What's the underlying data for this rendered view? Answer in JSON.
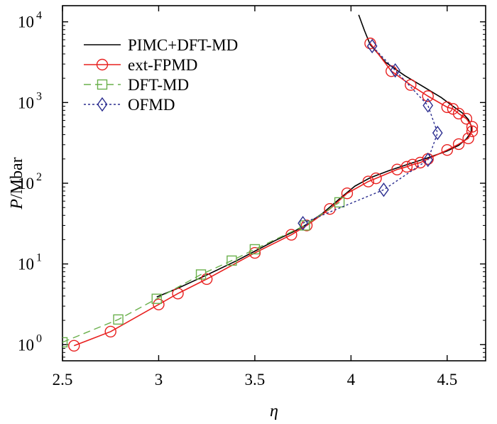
{
  "chart_data": {
    "type": "line",
    "xlabel": "η",
    "ylabel": {
      "italic": "P",
      "rest": "/Mbar"
    },
    "xlim": [
      2.5,
      4.7
    ],
    "ylim_log10": [
      -0.2,
      4.2
    ],
    "yscale": "log",
    "x_ticks": [
      {
        "value": 2.5,
        "label": "2.5"
      },
      {
        "value": 3,
        "label": "3"
      },
      {
        "value": 3.5,
        "label": "3.5"
      },
      {
        "value": 4,
        "label": "4"
      },
      {
        "value": 4.5,
        "label": "4.5"
      }
    ],
    "y_ticks": [
      {
        "value": 1,
        "base": "10",
        "exp": "0"
      },
      {
        "value": 10,
        "base": "10",
        "exp": "1"
      },
      {
        "value": 100,
        "base": "10",
        "exp": "2"
      },
      {
        "value": 1000,
        "base": "10",
        "exp": "3"
      },
      {
        "value": 10000,
        "base": "10",
        "exp": "4"
      }
    ],
    "grid": false,
    "legend_position": "top-left",
    "series": [
      {
        "name": "PIMC+DFT-MD",
        "color": "#000000",
        "style": "solid",
        "marker": "none",
        "points": [
          [
            2.99,
            3.9
          ],
          [
            3.1,
            5.0
          ],
          [
            3.25,
            7.3
          ],
          [
            3.4,
            10.8
          ],
          [
            3.5,
            14.4
          ],
          [
            3.6,
            19.2
          ],
          [
            3.7,
            25.0
          ],
          [
            3.76,
            30.0
          ],
          [
            3.85,
            42.0
          ],
          [
            3.95,
            67.0
          ],
          [
            4.02,
            92.0
          ],
          [
            4.1,
            117.0
          ],
          [
            4.2,
            144.0
          ],
          [
            4.3,
            173.0
          ],
          [
            4.4,
            207.0
          ],
          [
            4.5,
            251.0
          ],
          [
            4.56,
            295.0
          ],
          [
            4.6,
            355.0
          ],
          [
            4.625,
            430.0
          ],
          [
            4.625,
            515.0
          ],
          [
            4.61,
            618.0
          ],
          [
            4.58,
            740.0
          ],
          [
            4.53,
            900.0
          ],
          [
            4.47,
            1150.0
          ],
          [
            4.38,
            1550.0
          ],
          [
            4.28,
            2150.0
          ],
          [
            4.18,
            3150.0
          ],
          [
            4.1,
            5200.0
          ],
          [
            4.07,
            7800.0
          ],
          [
            4.04,
            12200.0
          ]
        ]
      },
      {
        "name": "ext-FPMD",
        "color": "#e8201f",
        "style": "solid",
        "marker": "circle",
        "points": [
          [
            2.56,
            0.97
          ],
          [
            2.75,
            1.45
          ],
          [
            3.0,
            3.15
          ],
          [
            3.1,
            4.3
          ],
          [
            3.25,
            6.5
          ],
          [
            3.5,
            13.7
          ],
          [
            3.69,
            23.0
          ],
          [
            3.77,
            30.0
          ],
          [
            3.89,
            48.0
          ],
          [
            3.98,
            75.0
          ],
          [
            4.09,
            105.0
          ],
          [
            4.13,
            115.0
          ],
          [
            4.24,
            148.0
          ],
          [
            4.29,
            160.0
          ],
          [
            4.32,
            170.0
          ],
          [
            4.36,
            180.0
          ],
          [
            4.4,
            200.0
          ],
          [
            4.5,
            258.0
          ],
          [
            4.56,
            305.0
          ],
          [
            4.61,
            360.0
          ],
          [
            4.63,
            440.0
          ],
          [
            4.63,
            500.0
          ],
          [
            4.6,
            630.0
          ],
          [
            4.56,
            730.0
          ],
          [
            4.53,
            835.0
          ],
          [
            4.5,
            875.0
          ],
          [
            4.4,
            1200.0
          ],
          [
            4.31,
            1650.0
          ],
          [
            4.21,
            2450.0
          ],
          [
            4.1,
            5400.0
          ]
        ]
      },
      {
        "name": "DFT-MD",
        "color": "#6ab04c",
        "style": "dashed",
        "marker": "square",
        "points": [
          [
            2.5,
            1.07
          ],
          [
            2.79,
            2.05
          ],
          [
            2.99,
            3.7
          ],
          [
            3.22,
            7.4
          ],
          [
            3.38,
            11.0
          ],
          [
            3.5,
            15.2
          ],
          [
            3.76,
            30.0
          ],
          [
            3.94,
            58.0
          ]
        ]
      },
      {
        "name": "OFMD",
        "color": "#2b2d8f",
        "style": "dotted",
        "marker": "diamond",
        "points": [
          [
            3.75,
            32.0
          ],
          [
            4.17,
            83.0
          ],
          [
            4.4,
            195.0
          ],
          [
            4.45,
            420.0
          ],
          [
            4.4,
            920.0
          ],
          [
            4.23,
            2500.0
          ],
          [
            4.11,
            5000.0
          ]
        ]
      }
    ]
  }
}
